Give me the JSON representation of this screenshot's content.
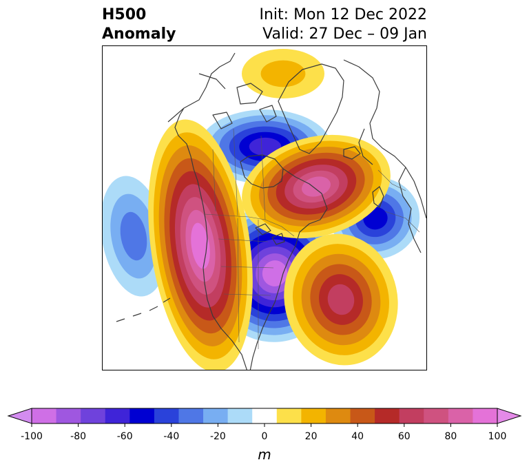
{
  "title": {
    "left_line1": "H500",
    "left_line2": "Anomaly",
    "right_line1": "Init: Mon 12 Dec 2022",
    "right_line2": "Valid: 27 Dec – 09 Jan"
  },
  "colorbar": {
    "unit": "m",
    "min": -100,
    "max": 100,
    "step": 10,
    "ticks": [
      "-100",
      "-80",
      "-60",
      "-40",
      "-20",
      "0",
      "20",
      "40",
      "60",
      "80",
      "100"
    ],
    "extend": "both",
    "colors": [
      "#cf6fe6",
      "#9f57e0",
      "#6f42dc",
      "#3f24d8",
      "#0000d2",
      "#2a42da",
      "#4f77e6",
      "#78aef2",
      "#acdbf8",
      "#ffffff",
      "#fde04a",
      "#f3b400",
      "#de8a10",
      "#c85818",
      "#b52a28",
      "#c23e60",
      "#cf5280",
      "#da62a8",
      "#e472d8"
    ],
    "under_color": "#d38cf0",
    "over_color": "#e48ae8"
  },
  "anomalies": [
    {
      "name": "central-us-low",
      "value": -100
    },
    {
      "name": "hudson-bay-low",
      "value": -70
    },
    {
      "name": "north-atlantic-low",
      "value": -60
    },
    {
      "name": "pacific-low",
      "value": -40
    },
    {
      "name": "western-na-ridge",
      "value": 90
    },
    {
      "name": "greenland-ridge",
      "value": 80
    },
    {
      "name": "west-atlantic-ridge",
      "value": 60
    },
    {
      "name": "arctic-ridge",
      "value": 20
    }
  ]
}
